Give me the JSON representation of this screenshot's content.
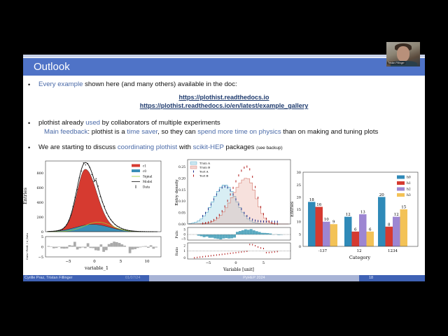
{
  "webcam": {
    "participant_name": "Tristan Fillinger"
  },
  "slide": {
    "title": "Outlook",
    "bullet1": {
      "hl": "Every example",
      "rest": " shown here (and many others) available in the doc:"
    },
    "links": [
      "https://plothist.readthedocs.io",
      "https://plothist.readthedocs.io/en/latest/example_gallery"
    ],
    "bullet2": {
      "a": "plothist already ",
      "hl": "used",
      "b": " by collaborators of multiple experiments"
    },
    "bullet2_sub": {
      "hl1": "Main feedback",
      "a": ": plothist is a ",
      "hl2": "time saver",
      "b": ", so they can ",
      "hl3": "spend more time on physics",
      "c": " than on making and tuning plots"
    },
    "bullet3": {
      "a": "We are starting to discuss ",
      "hl1": "coordinating plothist",
      "b": " with ",
      "hl2": "scikit-HEP",
      "c": " packages ",
      "small": "(see backup)"
    },
    "footer": {
      "authors": "Cyrille Praz, Tristan Fillinger",
      "date": "01/07/24",
      "event": "PyHEP 2024",
      "page": "18"
    }
  },
  "colors": {
    "header": "#4f73c7",
    "highlight": "#4a6aa8",
    "link": "#1f3b6e",
    "c1": "#d63a30",
    "c0": "#3a8fb7",
    "signal": "#9acd32",
    "train_a": "#5aa9c9",
    "train_b": "#d9857a"
  },
  "chart_data": [
    {
      "type": "area",
      "ylabel": "Entries",
      "xlabel": "variable_1",
      "ratio_ylabel": "Data−Pred. / σ_Data",
      "yticks": [
        "0",
        "200",
        "400",
        "600",
        "800"
      ],
      "xticks": [
        "−5",
        "0",
        "5",
        "10"
      ],
      "ratio_yticks": [
        "5",
        "0",
        "−5"
      ],
      "legend": [
        "c1",
        "c0",
        "Signal",
        "Model",
        "Data"
      ],
      "legend_placement": "top-right",
      "ylim": [
        0,
        920
      ],
      "xlim": [
        -9,
        12
      ]
    },
    {
      "type": "area",
      "ylabel": "Entry density",
      "xlabel": "Variable [unit]",
      "pulls_ylabel": "Pulls",
      "ratio_ylabel": "Ratio",
      "yticks": [
        "0.00",
        "0.05",
        "0.10",
        "0.15",
        "0.20",
        "0.25"
      ],
      "xticks": [
        "−5",
        "0",
        "5"
      ],
      "pulls_yticks": [
        "5",
        "0",
        "−5"
      ],
      "ratio_yticks": [
        "2",
        "1",
        "0"
      ],
      "legend": [
        "Train A",
        "Train B",
        "Test A",
        "Test B"
      ],
      "legend_placement": "top-left",
      "ylim": [
        0,
        0.27
      ],
      "xlim": [
        -8.5,
        10
      ]
    },
    {
      "type": "bar",
      "ylabel": "Entries",
      "xlabel": "Category",
      "categories": [
        "-137",
        "12",
        "1234"
      ],
      "yticks": [
        "0",
        "5",
        "10",
        "15",
        "20",
        "25",
        "30"
      ],
      "ylim": [
        0,
        30
      ],
      "legend_placement": "top-right",
      "series": [
        {
          "name": "h0",
          "values": [
            18,
            12,
            20
          ],
          "color": "#2f8ab8"
        },
        {
          "name": "h1",
          "values": [
            16,
            6,
            8
          ],
          "color": "#d63a30"
        },
        {
          "name": "h2",
          "values": [
            10,
            13,
            12
          ],
          "color": "#9d86d2"
        },
        {
          "name": "h3",
          "values": [
            9,
            6,
            15
          ],
          "color": "#f3c257"
        }
      ]
    }
  ]
}
